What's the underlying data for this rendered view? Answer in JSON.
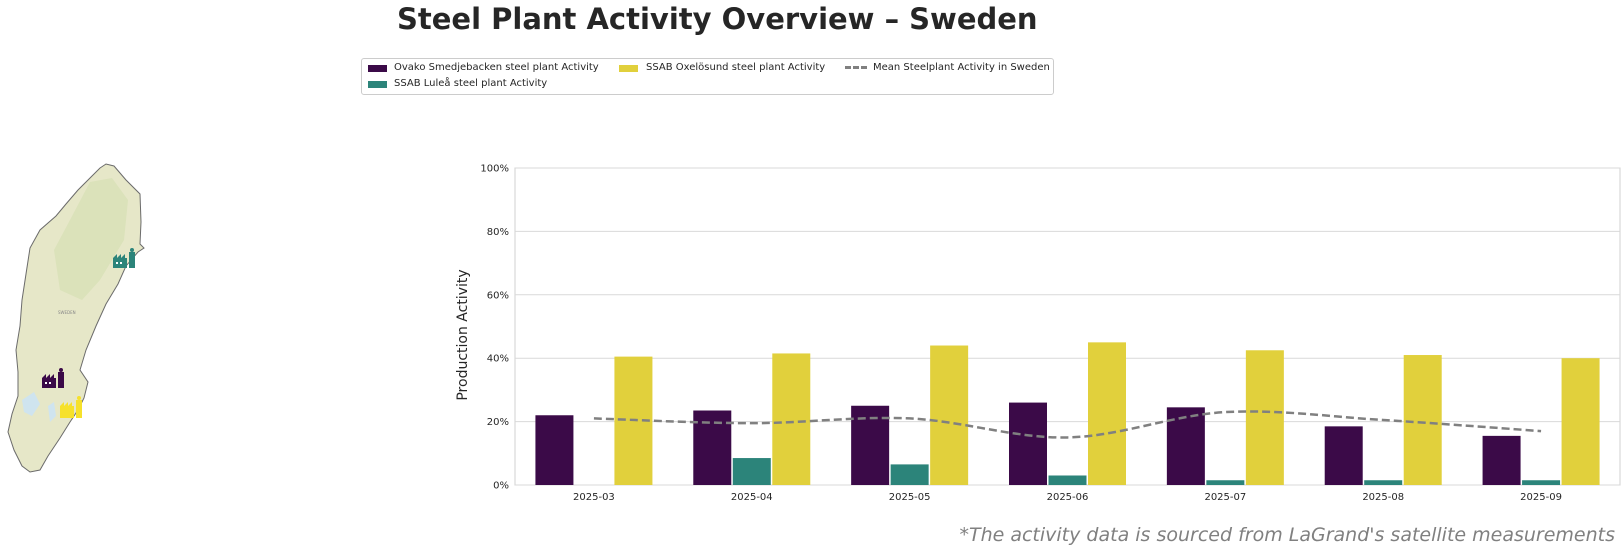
{
  "title": "Steel Plant Activity Overview – Sweden",
  "footnote": "*The activity data is sourced from LaGrand's satellite measurements",
  "legend": {
    "items": [
      {
        "label": "Ovako Smedjebacken steel plant Activity",
        "color": "#3b0a48"
      },
      {
        "label": "SSAB Luleå steel plant Activity",
        "color": "#2c847a"
      },
      {
        "label": "SSAB Oxelösund steel plant Activity",
        "color": "#e1d03c"
      },
      {
        "label": "Mean Steelplant Activity in Sweden",
        "color": "#808080"
      }
    ]
  },
  "map": {
    "country_label": "SWEDEN",
    "markers": [
      {
        "name": "lulea-plant-icon",
        "color": "#2c847a"
      },
      {
        "name": "smedjebacken-plant-icon",
        "color": "#3b0a48"
      },
      {
        "name": "oxelosund-plant-icon",
        "color": "#f6e12b"
      }
    ]
  },
  "chart_data": {
    "type": "bar",
    "ylabel": "Production Activity",
    "xlabel": "",
    "ylim": [
      0,
      100
    ],
    "yticks": [
      "0%",
      "20%",
      "40%",
      "60%",
      "80%",
      "100%"
    ],
    "grid": true,
    "legend_placement": "top-center",
    "categories": [
      "2025-03",
      "2025-04",
      "2025-05",
      "2025-06",
      "2025-07",
      "2025-08",
      "2025-09"
    ],
    "series": [
      {
        "name": "Ovako Smedjebacken steel plant Activity",
        "type": "bar",
        "color": "#3b0a48",
        "values": [
          22,
          23.5,
          25,
          26,
          24.5,
          18.5,
          15.5
        ]
      },
      {
        "name": "SSAB Luleå steel plant Activity",
        "type": "bar",
        "color": "#2c847a",
        "values": [
          0,
          8.5,
          6.5,
          3,
          1.5,
          1.5,
          1.5
        ]
      },
      {
        "name": "SSAB Oxelösund steel plant Activity",
        "type": "bar",
        "color": "#e1d03c",
        "values": [
          40.5,
          41.5,
          44,
          45,
          42.5,
          41,
          40
        ]
      },
      {
        "name": "Mean Steelplant Activity in Sweden",
        "type": "line",
        "color": "#808080",
        "style": "dashed",
        "values": [
          21,
          19.5,
          21,
          15,
          23,
          20.5,
          17
        ]
      }
    ]
  }
}
